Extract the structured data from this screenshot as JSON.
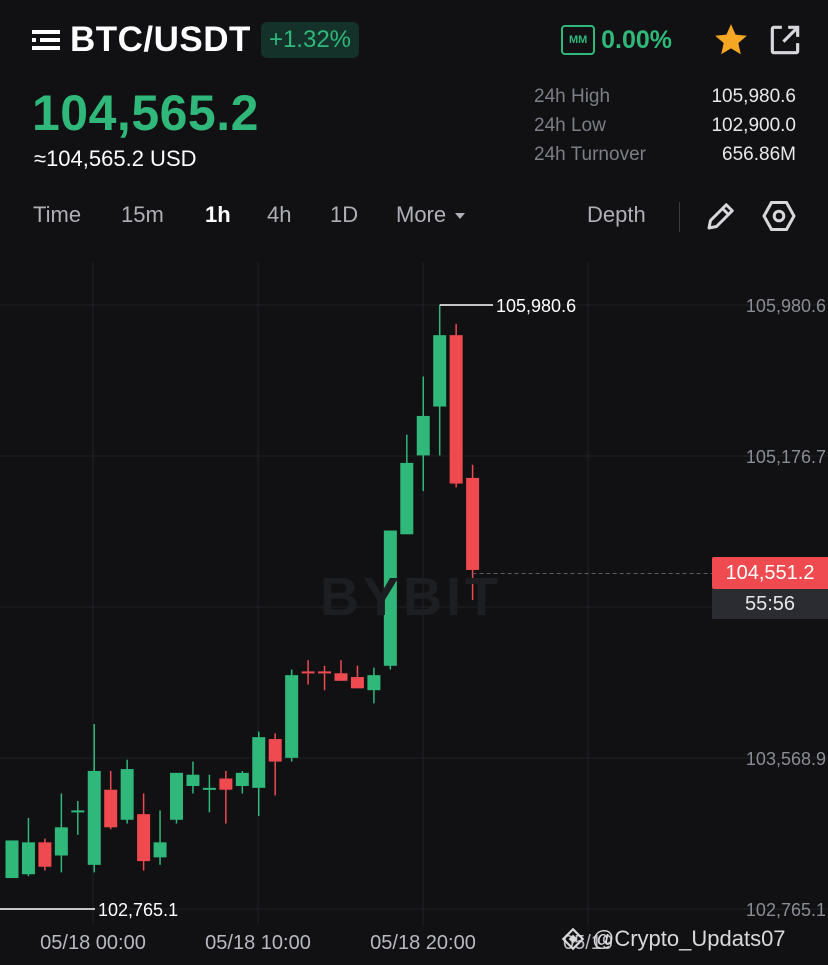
{
  "header": {
    "pair": "BTC/USDT",
    "change": "+1.32%",
    "mm_badge": "MM",
    "mm_value": "0.00%"
  },
  "price": {
    "last": "104,565.2",
    "usd": "≈104,565.2 USD"
  },
  "stats": [
    {
      "label": "24h High",
      "value": "105,980.6"
    },
    {
      "label": "24h Low",
      "value": "102,900.0"
    },
    {
      "label": "24h Turnover",
      "value": "656.86M"
    }
  ],
  "toolbar": {
    "tabs": [
      "Time",
      "15m",
      "1h",
      "4h",
      "1D",
      "More"
    ],
    "active": "1h",
    "depth": "Depth"
  },
  "colors": {
    "up": "#2fb879",
    "down": "#ef4a4f",
    "bg": "#111114",
    "grid": "#202126"
  },
  "chart_data": {
    "type": "candlestick",
    "interval": "1h",
    "y_ticks": [
      "105,980.6",
      "105,176.7",
      "103,568.9",
      "102,765.1"
    ],
    "x_ticks": [
      "05/18 00:00",
      "05/18 10:00",
      "05/18 20:00",
      "05/19"
    ],
    "ylim": [
      102765.1,
      105980.6
    ],
    "high_marker": "105,980.6",
    "low_marker": "102,765.1",
    "current_price": "104,551.2",
    "countdown": "55:56",
    "watermark": "BYBIT",
    "candles": [
      {
        "o": 102930,
        "h": 103130,
        "l": 102930,
        "c": 103130
      },
      {
        "o": 102950,
        "h": 103250,
        "l": 102940,
        "c": 103120
      },
      {
        "o": 103120,
        "h": 103140,
        "l": 102970,
        "c": 102990
      },
      {
        "o": 103050,
        "h": 103380,
        "l": 102960,
        "c": 103200
      },
      {
        "o": 103280,
        "h": 103340,
        "l": 103160,
        "c": 103290
      },
      {
        "o": 103000,
        "h": 103750,
        "l": 102960,
        "c": 103500
      },
      {
        "o": 103400,
        "h": 103500,
        "l": 103190,
        "c": 103200
      },
      {
        "o": 103240,
        "h": 103560,
        "l": 103220,
        "c": 103510
      },
      {
        "o": 103270,
        "h": 103380,
        "l": 102970,
        "c": 103020
      },
      {
        "o": 103040,
        "h": 103290,
        "l": 103000,
        "c": 103120
      },
      {
        "o": 103240,
        "h": 103480,
        "l": 103220,
        "c": 103490
      },
      {
        "o": 103420,
        "h": 103550,
        "l": 103380,
        "c": 103480
      },
      {
        "o": 103400,
        "h": 103480,
        "l": 103280,
        "c": 103410
      },
      {
        "o": 103460,
        "h": 103500,
        "l": 103220,
        "c": 103400
      },
      {
        "o": 103420,
        "h": 103500,
        "l": 103380,
        "c": 103490
      },
      {
        "o": 103410,
        "h": 103710,
        "l": 103260,
        "c": 103680
      },
      {
        "o": 103670,
        "h": 103700,
        "l": 103370,
        "c": 103550
      },
      {
        "o": 103570,
        "h": 104040,
        "l": 103550,
        "c": 104010
      },
      {
        "o": 104030,
        "h": 104090,
        "l": 103960,
        "c": 104020
      },
      {
        "o": 104030,
        "h": 104060,
        "l": 103930,
        "c": 104020
      },
      {
        "o": 104020,
        "h": 104090,
        "l": 103980,
        "c": 103980
      },
      {
        "o": 104000,
        "h": 104060,
        "l": 103960,
        "c": 103940
      },
      {
        "o": 103930,
        "h": 104050,
        "l": 103860,
        "c": 104010
      },
      {
        "o": 104060,
        "h": 104780,
        "l": 104040,
        "c": 104780
      },
      {
        "o": 104760,
        "h": 105290,
        "l": 104760,
        "c": 105140
      },
      {
        "o": 105180,
        "h": 105600,
        "l": 104990,
        "c": 105390
      },
      {
        "o": 105440,
        "h": 105980,
        "l": 105180,
        "c": 105820
      },
      {
        "o": 105820,
        "h": 105880,
        "l": 105010,
        "c": 105030
      },
      {
        "o": 105060,
        "h": 105130,
        "l": 104410,
        "c": 104570
      }
    ]
  },
  "footer": {
    "handle": "@Crypto_Updats07"
  }
}
